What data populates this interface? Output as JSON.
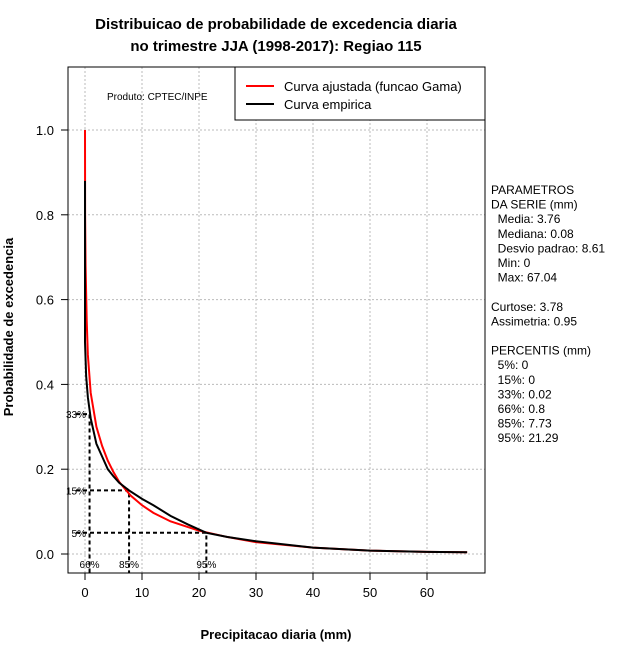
{
  "chart_data": {
    "type": "line",
    "title_lines": [
      "Distribuicao de probabilidade de excedencia diaria",
      "no trimestre JJA (1998-2017): Regiao 115"
    ],
    "xlabel": "Precipitacao diaria (mm)",
    "ylabel": "Probabilidade de excedencia",
    "xlim": [
      -3,
      70
    ],
    "ylim": [
      -0.045,
      1.15
    ],
    "xticks": [
      0,
      10,
      20,
      30,
      40,
      50,
      60
    ],
    "yticks": [
      0.0,
      0.2,
      0.4,
      0.6,
      0.8,
      1.0
    ],
    "ytick_labels": [
      "0.0",
      "0.2",
      "0.4",
      "0.6",
      "0.8",
      "1.0"
    ],
    "grid": true,
    "credit": "Produto: CPTEC/INPE",
    "legend": {
      "position": "top-right",
      "entries": [
        {
          "label": "Curva ajustada (funcao Gama)",
          "color": "#ff0000"
        },
        {
          "label": "Curva empirica",
          "color": "#000000"
        }
      ]
    },
    "series": [
      {
        "name": "Curva ajustada (funcao Gama)",
        "color": "#ff0000",
        "x": [
          0,
          0.02,
          0.1,
          0.3,
          0.5,
          1,
          2,
          3,
          4,
          5,
          6,
          8,
          10,
          12,
          15,
          20,
          25,
          30,
          40,
          50,
          60,
          67.04
        ],
        "y": [
          1.0,
          0.8,
          0.68,
          0.55,
          0.47,
          0.38,
          0.3,
          0.255,
          0.22,
          0.193,
          0.17,
          0.138,
          0.115,
          0.097,
          0.077,
          0.055,
          0.04,
          0.028,
          0.015,
          0.008,
          0.005,
          0.004
        ]
      },
      {
        "name": "Curva empirica",
        "color": "#000000",
        "x": [
          0,
          0,
          0.2,
          0.5,
          1,
          2,
          3,
          4,
          5,
          6,
          7.73,
          10,
          12,
          15,
          18,
          21.29,
          25,
          30,
          40,
          50,
          60,
          67.04
        ],
        "y": [
          0.88,
          0.5,
          0.42,
          0.37,
          0.32,
          0.26,
          0.23,
          0.2,
          0.183,
          0.168,
          0.15,
          0.13,
          0.115,
          0.09,
          0.07,
          0.05,
          0.04,
          0.03,
          0.015,
          0.008,
          0.005,
          0.004
        ]
      }
    ],
    "percentile_markers": [
      {
        "label": "33%",
        "prob": 0.33,
        "xlabel": "66%",
        "x": 0.8
      },
      {
        "label": "15%",
        "prob": 0.15,
        "xlabel": "85%",
        "x": 7.73
      },
      {
        "label": "5%",
        "prob": 0.05,
        "xlabel": "95%",
        "x": 21.29
      }
    ],
    "side_text": [
      "PARAMETROS",
      "DA SERIE (mm)",
      "  Media: 3.76",
      "  Mediana: 0.08",
      "  Desvio padrao: 8.61",
      "  Min: 0",
      "  Max: 67.04",
      "",
      "Curtose: 3.78",
      "Assimetria: 0.95",
      "",
      "PERCENTIS (mm)",
      "  5%: 0",
      "  15%: 0",
      "  33%: 0.02",
      "  66%: 0.8",
      "  85%: 7.73",
      "  95%: 21.29"
    ]
  }
}
